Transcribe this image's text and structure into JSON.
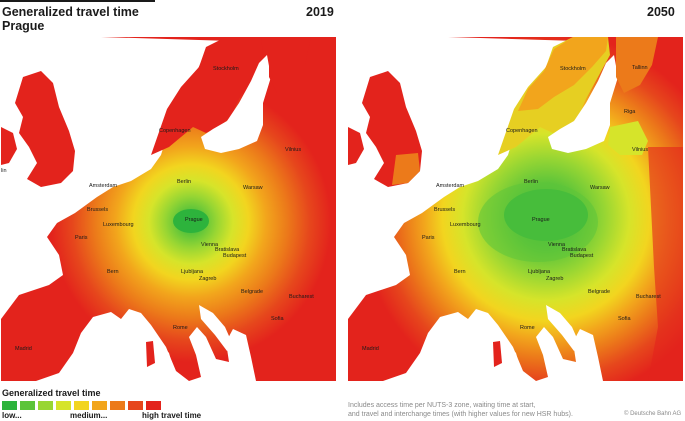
{
  "header": {
    "title": "Generalized travel time",
    "subtitle": "Prague",
    "year_left": "2019",
    "year_right": "2050"
  },
  "legend": {
    "title": "Generalized travel time",
    "colors": [
      "#2db33c",
      "#5cc43a",
      "#98d633",
      "#d6e42a",
      "#f2d51f",
      "#f2a51c",
      "#ec7a1a",
      "#e6461c",
      "#e3231c"
    ],
    "label_low": "low...",
    "label_medium": "medium...",
    "label_high": "high travel time"
  },
  "footnote": {
    "line1": "Includes access time per NUTS-3 zone, waiting time at start,",
    "line2": "and travel and interchange times (with higher values for new HSR hubs).",
    "credit": "© Deutsche Bahn AG"
  },
  "maps": {
    "left": {
      "year": "2019",
      "cities": {
        "stockholm": "Stockholm",
        "copenhagen": "Copenhagen",
        "vilnius": "Vilnius",
        "amsterdam": "Amsterdam",
        "berlin": "Berlin",
        "warsaw": "Warsaw",
        "brussels": "Brussels",
        "luxembourg": "Luxembourg",
        "prague": "Prague",
        "paris": "Paris",
        "vienna": "Vienna",
        "bratislava": "Bratislava",
        "budapest": "Budapest",
        "bern": "Bern",
        "ljubljana": "Ljubljana",
        "zagreb": "Zagreb",
        "belgrade": "Belgrade",
        "bucharest": "Bucharest",
        "rome": "Rome",
        "sofia": "Sofia",
        "madrid": "Madrid",
        "dublin": "lin"
      }
    },
    "right": {
      "year": "2050",
      "cities": {
        "stockholm": "Stockholm",
        "tallinn": "Tallinn",
        "riga": "Riga",
        "copenhagen": "Copenhagen",
        "vilnius": "Vilnius",
        "amsterdam": "Amsterdam",
        "berlin": "Berlin",
        "warsaw": "Warsaw",
        "brussels": "Brussels",
        "luxembourg": "Luxembourg",
        "prague": "Prague",
        "paris": "Paris",
        "vienna": "Vienna",
        "bratislava": "Bratislava",
        "budapest": "Budapest",
        "bern": "Bern",
        "ljubljana": "Ljubljana",
        "zagreb": "Zagreb",
        "belgrade": "Belgrade",
        "bucharest": "Bucharest",
        "rome": "Rome",
        "sofia": "Sofia",
        "madrid": "Madrid"
      }
    }
  }
}
